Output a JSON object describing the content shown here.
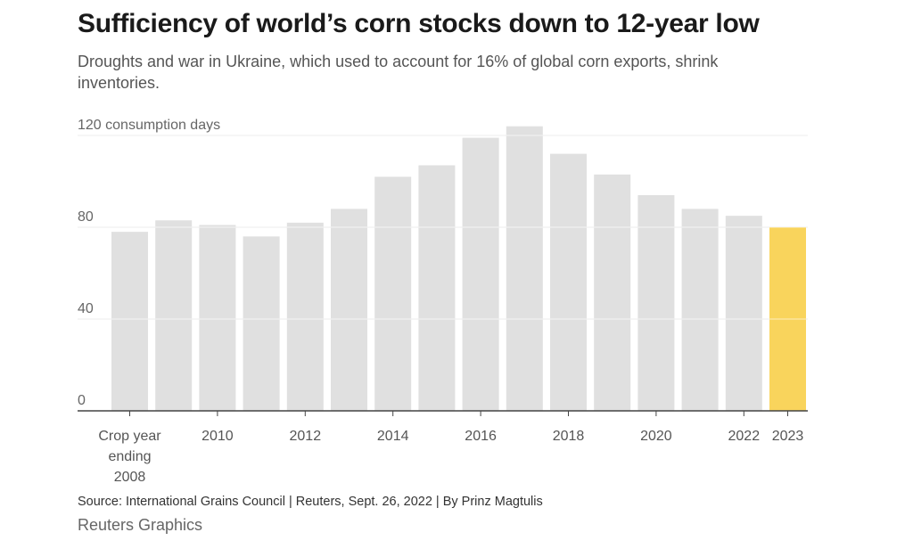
{
  "header": {
    "title": "Sufficiency of world’s corn stocks down to 12-year low",
    "subtitle": "Droughts and war in Ukraine, which used to account for 16% of global corn exports, shrink inventories."
  },
  "chart_data": {
    "type": "bar",
    "categories": [
      "2008",
      "2009",
      "2010",
      "2011",
      "2012",
      "2013",
      "2014",
      "2015",
      "2016",
      "2017",
      "2018",
      "2019",
      "2020",
      "2021",
      "2022",
      "2023"
    ],
    "values": [
      78,
      83,
      81,
      76,
      82,
      88,
      102,
      107,
      119,
      124,
      112,
      103,
      94,
      88,
      85,
      80
    ],
    "highlight_index": 15,
    "x_tick_labels": [
      {
        "index": 0,
        "lines": [
          "Crop year",
          "ending",
          "2008"
        ]
      },
      {
        "index": 2,
        "lines": [
          "2010"
        ]
      },
      {
        "index": 4,
        "lines": [
          "2012"
        ]
      },
      {
        "index": 6,
        "lines": [
          "2014"
        ]
      },
      {
        "index": 8,
        "lines": [
          "2016"
        ]
      },
      {
        "index": 10,
        "lines": [
          "2018"
        ]
      },
      {
        "index": 12,
        "lines": [
          "2020"
        ]
      },
      {
        "index": 14,
        "lines": [
          "2022"
        ]
      },
      {
        "index": 15,
        "lines": [
          "2023"
        ]
      }
    ],
    "y_ticks": [
      {
        "value": 0,
        "label": "0"
      },
      {
        "value": 40,
        "label": "40"
      },
      {
        "value": 80,
        "label": "80"
      },
      {
        "value": 120,
        "label": "120 consumption days"
      }
    ],
    "ylim": [
      0,
      120
    ],
    "grid": true,
    "colors": {
      "bar": "#e0e0e0",
      "highlight": "#f9d45c",
      "grid": "#cfcfcf",
      "axis": "#444444"
    }
  },
  "footer": {
    "source": "Source: International Grains Council | Reuters, Sept. 26, 2022 | By Prinz Magtulis",
    "brand": "Reuters Graphics"
  }
}
